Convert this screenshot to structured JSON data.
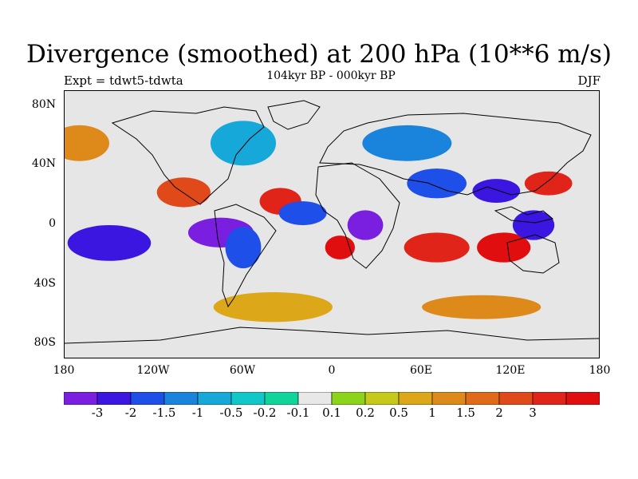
{
  "title": "Divergence (smoothed) at 200 hPa (10**6 m/s)",
  "experiment": "Expt = tdwt5-tdwta",
  "period": "104kyr BP - 000kyr BP",
  "season": "DJF",
  "map": {
    "projection": "cylindrical-equidistant",
    "lon_range": [
      -180,
      180
    ],
    "lat_range": [
      -90,
      90
    ],
    "lat_ticks": [
      {
        "lat": 80,
        "label": "80N"
      },
      {
        "lat": 40,
        "label": "40N"
      },
      {
        "lat": 0,
        "label": "0"
      },
      {
        "lat": -40,
        "label": "40S"
      },
      {
        "lat": -80,
        "label": "80S"
      }
    ],
    "lon_ticks": [
      {
        "lon": -180,
        "label": "180"
      },
      {
        "lon": -120,
        "label": "120W"
      },
      {
        "lon": -60,
        "label": "60W"
      },
      {
        "lon": 0,
        "label": "0"
      },
      {
        "lon": 60,
        "label": "60E"
      },
      {
        "lon": 120,
        "label": "120E"
      },
      {
        "lon": 180,
        "label": "180"
      }
    ],
    "background_color": "#e6e6e6",
    "fields": [
      {
        "lon": -150,
        "lat": -12,
        "rlon": 28,
        "rlat": 12,
        "bin": 1
      },
      {
        "lon": -100,
        "lat": 22,
        "rlon": 18,
        "rlat": 10,
        "bin": 13
      },
      {
        "lon": -75,
        "lat": -5,
        "rlon": 22,
        "rlat": 10,
        "bin": 0
      },
      {
        "lon": -60,
        "lat": -15,
        "rlon": 12,
        "rlat": 14,
        "bin": 2
      },
      {
        "lon": -35,
        "lat": 16,
        "rlon": 14,
        "rlat": 9,
        "bin": 14
      },
      {
        "lon": -20,
        "lat": 8,
        "rlon": 16,
        "rlat": 8,
        "bin": 2
      },
      {
        "lon": 5,
        "lat": -15,
        "rlon": 10,
        "rlat": 8,
        "bin": 15
      },
      {
        "lon": 22,
        "lat": 0,
        "rlon": 12,
        "rlat": 10,
        "bin": 0
      },
      {
        "lon": 70,
        "lat": -15,
        "rlon": 22,
        "rlat": 10,
        "bin": 14
      },
      {
        "lon": 115,
        "lat": -15,
        "rlon": 18,
        "rlat": 10,
        "bin": 15
      },
      {
        "lon": 110,
        "lat": 23,
        "rlon": 16,
        "rlat": 8,
        "bin": 1
      },
      {
        "lon": 135,
        "lat": 0,
        "rlon": 14,
        "rlat": 10,
        "bin": 1
      },
      {
        "lon": 70,
        "lat": 28,
        "rlon": 20,
        "rlat": 10,
        "bin": 2
      },
      {
        "lon": 145,
        "lat": 28,
        "rlon": 16,
        "rlat": 8,
        "bin": 14
      },
      {
        "lon": -60,
        "lat": 55,
        "rlon": 22,
        "rlat": 15,
        "bin": 4
      },
      {
        "lon": 50,
        "lat": 55,
        "rlon": 30,
        "rlat": 12,
        "bin": 3
      },
      {
        "lon": -170,
        "lat": 55,
        "rlon": 20,
        "rlat": 12,
        "bin": 11
      },
      {
        "lon": -40,
        "lat": -55,
        "rlon": 40,
        "rlat": 10,
        "bin": 10
      },
      {
        "lon": 100,
        "lat": -55,
        "rlon": 40,
        "rlat": 8,
        "bin": 11
      }
    ]
  },
  "colorbar": {
    "colors": [
      "#7a1ee0",
      "#3a16e0",
      "#1e4fe8",
      "#1a83dc",
      "#15a8d8",
      "#10c8c8",
      "#10d49a",
      "#e8e8e8",
      "#8cd41a",
      "#c6c81a",
      "#dca81a",
      "#de8a1a",
      "#e06a1a",
      "#e04a1a",
      "#e0241a",
      "#e00e0e"
    ],
    "labels": [
      "-3",
      "-2",
      "-1.5",
      "-1",
      "-0.5",
      "-0.2",
      "-0.1",
      "0.1",
      "0.2",
      "0.5",
      "1",
      "1.5",
      "2",
      "3"
    ]
  }
}
